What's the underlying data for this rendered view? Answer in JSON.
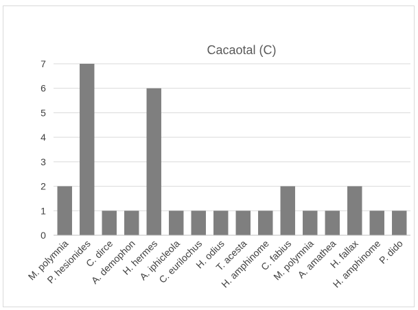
{
  "chart_data": {
    "type": "bar",
    "title": "Cacaotal (C)",
    "xlabel": "",
    "ylabel": "",
    "categories": [
      "M. polymnia",
      "P. hesionides",
      "C. dirce",
      "A. demophon",
      "H. hermes",
      "A. iphicleola",
      "C. eurilochus",
      "H. odius",
      "T. acesta",
      "H. amphinome",
      "C. fabius",
      "M. polymnia",
      "A. amathea",
      "H. fallax",
      "H. amphinome",
      "P. dido"
    ],
    "values": [
      2,
      7,
      1,
      1,
      6,
      1,
      1,
      1,
      1,
      1,
      2,
      1,
      1,
      2,
      1,
      1
    ],
    "ylim": [
      0,
      7
    ],
    "yticks": [
      0,
      1,
      2,
      3,
      4,
      5,
      6,
      7
    ],
    "grid": true,
    "legend": "none",
    "bar_color": "#7f7f7f"
  }
}
